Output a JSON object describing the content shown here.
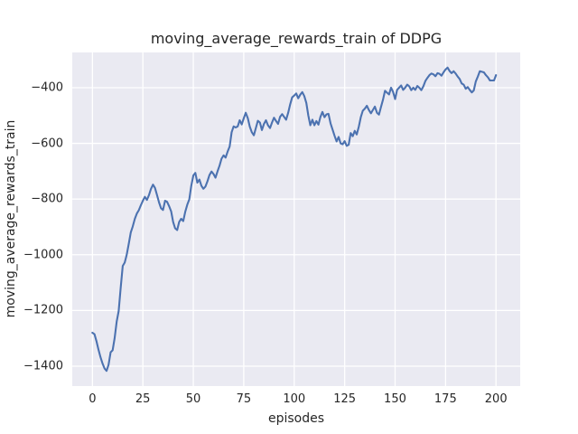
{
  "chart_data": {
    "type": "line",
    "title": "moving_average_rewards_train of DDPG",
    "xlabel": "episodes",
    "ylabel": "moving_average_rewards_train",
    "grid": true,
    "legend": false,
    "style": "seaborn-darkgrid",
    "xlim": [
      -10,
      212
    ],
    "ylim": [
      -1471.5,
      -273.5
    ],
    "xticks": [
      0,
      25,
      50,
      75,
      100,
      125,
      150,
      175,
      200
    ],
    "xticklabels": [
      "0",
      "25",
      "50",
      "75",
      "100",
      "125",
      "150",
      "175",
      "200"
    ],
    "yticks": [
      -400,
      -600,
      -800,
      -1000,
      -1200,
      -1400
    ],
    "yticklabels": [
      "−400",
      "−600",
      "−800",
      "−1000",
      "−1200",
      "−1400"
    ],
    "colors": {
      "line": "#4c72b0",
      "plot_bg": "#eaeaf2",
      "grid": "#ffffff",
      "text": "#262626",
      "figure_bg": "#ffffff"
    },
    "series": [
      {
        "name": "moving_average_rewards_train",
        "x": [
          0,
          1,
          2,
          3,
          4,
          5,
          6,
          7,
          8,
          9,
          10,
          11,
          12,
          13,
          14,
          15,
          16,
          17,
          18,
          19,
          20,
          21,
          22,
          23,
          24,
          25,
          26,
          27,
          28,
          29,
          30,
          31,
          32,
          33,
          34,
          35,
          36,
          37,
          38,
          39,
          40,
          41,
          42,
          43,
          44,
          45,
          46,
          47,
          48,
          49,
          50,
          51,
          52,
          53,
          54,
          55,
          56,
          57,
          58,
          59,
          60,
          61,
          62,
          63,
          64,
          65,
          66,
          67,
          68,
          69,
          70,
          71,
          72,
          73,
          74,
          75,
          76,
          77,
          78,
          79,
          80,
          81,
          82,
          83,
          84,
          85,
          86,
          87,
          88,
          89,
          90,
          91,
          92,
          93,
          94,
          95,
          96,
          97,
          98,
          99,
          100,
          101,
          102,
          103,
          104,
          105,
          106,
          107,
          108,
          109,
          110,
          111,
          112,
          113,
          114,
          115,
          116,
          117,
          118,
          119,
          120,
          121,
          122,
          123,
          124,
          125,
          126,
          127,
          128,
          129,
          130,
          131,
          132,
          133,
          134,
          135,
          136,
          137,
          138,
          139,
          140,
          141,
          142,
          143,
          144,
          145,
          146,
          147,
          148,
          149,
          150,
          151,
          152,
          153,
          154,
          155,
          156,
          157,
          158,
          159,
          160,
          161,
          162,
          163,
          164,
          165,
          166,
          167,
          168,
          169,
          170,
          171,
          172,
          173,
          174,
          175,
          176,
          177,
          178,
          179,
          180,
          181,
          182,
          183,
          184,
          185,
          186,
          187,
          188,
          189,
          190,
          191,
          192,
          193,
          194,
          195,
          196,
          197,
          198,
          199,
          200
        ],
        "y": [
          -1280,
          -1285,
          -1310,
          -1340,
          -1368,
          -1390,
          -1408,
          -1417,
          -1395,
          -1350,
          -1343,
          -1300,
          -1240,
          -1202,
          -1120,
          -1040,
          -1028,
          -1000,
          -960,
          -920,
          -898,
          -871,
          -852,
          -840,
          -822,
          -806,
          -792,
          -803,
          -786,
          -764,
          -748,
          -760,
          -785,
          -812,
          -833,
          -839,
          -806,
          -810,
          -825,
          -844,
          -882,
          -905,
          -911,
          -882,
          -871,
          -879,
          -846,
          -820,
          -801,
          -752,
          -715,
          -706,
          -741,
          -730,
          -752,
          -763,
          -755,
          -736,
          -714,
          -701,
          -710,
          -723,
          -700,
          -680,
          -655,
          -643,
          -651,
          -630,
          -611,
          -560,
          -539,
          -543,
          -539,
          -517,
          -532,
          -510,
          -490,
          -510,
          -540,
          -560,
          -571,
          -545,
          -519,
          -525,
          -552,
          -530,
          -517,
          -535,
          -545,
          -525,
          -508,
          -520,
          -530,
          -505,
          -495,
          -505,
          -515,
          -490,
          -460,
          -435,
          -428,
          -421,
          -438,
          -425,
          -416,
          -430,
          -455,
          -500,
          -535,
          -515,
          -535,
          -520,
          -533,
          -505,
          -487,
          -506,
          -496,
          -494,
          -528,
          -550,
          -573,
          -593,
          -577,
          -600,
          -603,
          -592,
          -609,
          -605,
          -563,
          -574,
          -555,
          -568,
          -540,
          -506,
          -483,
          -475,
          -465,
          -480,
          -492,
          -480,
          -468,
          -490,
          -497,
          -470,
          -443,
          -411,
          -418,
          -424,
          -400,
          -415,
          -441,
          -408,
          -400,
          -392,
          -408,
          -400,
          -389,
          -395,
          -409,
          -400,
          -408,
          -394,
          -400,
          -409,
          -395,
          -376,
          -365,
          -355,
          -349,
          -352,
          -359,
          -348,
          -350,
          -357,
          -345,
          -335,
          -328,
          -340,
          -348,
          -341,
          -349,
          -360,
          -369,
          -385,
          -389,
          -404,
          -398,
          -408,
          -417,
          -410,
          -378,
          -360,
          -341,
          -343,
          -345,
          -355,
          -363,
          -374,
          -374,
          -374,
          -355
        ]
      }
    ]
  }
}
